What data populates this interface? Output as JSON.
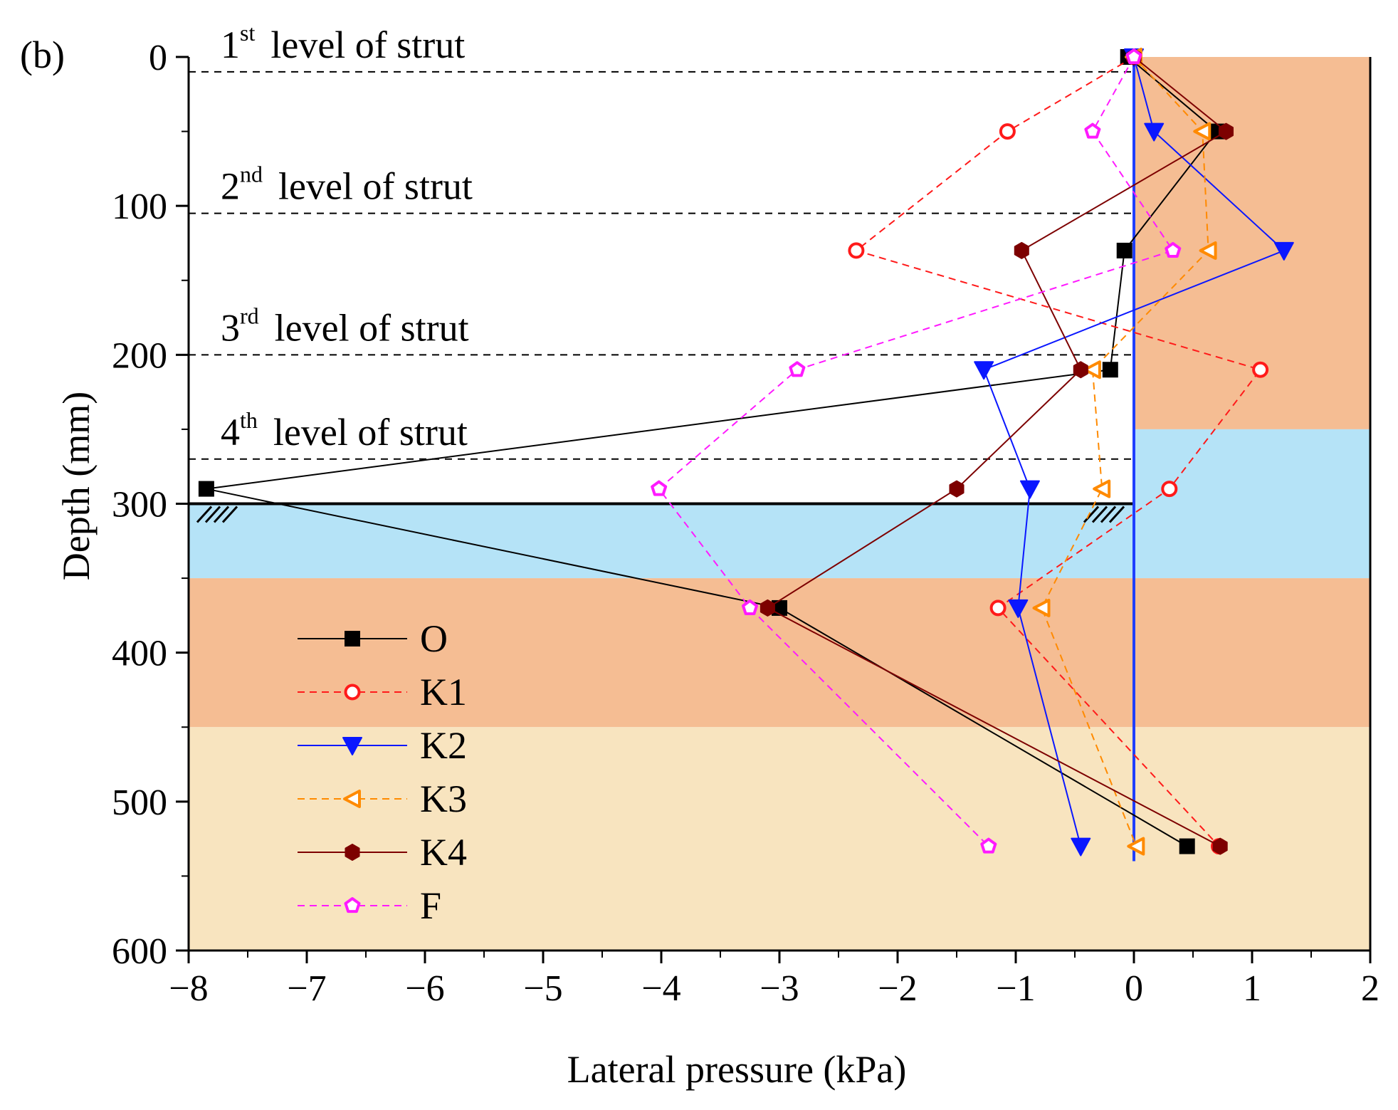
{
  "chart_data": {
    "type": "line",
    "panel_label": "(b)",
    "xlabel": "Lateral pressure (kPa)",
    "ylabel": "Depth (mm)",
    "xlim": [
      -8,
      2
    ],
    "ylim": [
      600,
      0
    ],
    "y_inverted": true,
    "xticks": [
      -8,
      -7,
      -6,
      -5,
      -4,
      -3,
      -2,
      -1,
      0,
      1,
      2
    ],
    "xtick_labels": [
      "−8",
      "−7",
      "−6",
      "−5",
      "−4",
      "−3",
      "−2",
      "−1",
      "0",
      "1",
      "2"
    ],
    "yticks": [
      0,
      100,
      200,
      300,
      400,
      500,
      600
    ],
    "ytick_labels": [
      "0",
      "100",
      "200",
      "300",
      "400",
      "500",
      "600"
    ],
    "grid": false,
    "legend_position": "lower-left",
    "soil_layers": [
      {
        "x_from": 0,
        "x_to": 2,
        "depth_from": 0,
        "depth_to": 250,
        "color": "#f5bd93"
      },
      {
        "x_from": 0,
        "x_to": 2,
        "depth_from": 250,
        "depth_to": 300,
        "color": "#b5e3f7"
      },
      {
        "x_from": -8,
        "x_to": 2,
        "depth_from": 300,
        "depth_to": 350,
        "color": "#b5e3f7"
      },
      {
        "x_from": -8,
        "x_to": 2,
        "depth_from": 350,
        "depth_to": 450,
        "color": "#f5bd93"
      },
      {
        "x_from": -8,
        "x_to": 2,
        "depth_from": 450,
        "depth_to": 600,
        "color": "#f8e4bf"
      }
    ],
    "strut_levels": [
      {
        "depth": 10,
        "ordinal": "1",
        "suffix": "st",
        "text": "level of strut"
      },
      {
        "depth": 105,
        "ordinal": "2",
        "suffix": "nd",
        "text": "level of strut"
      },
      {
        "depth": 200,
        "ordinal": "3",
        "suffix": "rd",
        "text": "level of strut"
      },
      {
        "depth": 270,
        "ordinal": "4",
        "suffix": "th",
        "text": "level of strut"
      }
    ],
    "excavation_base": {
      "depth": 300,
      "x_from": -8,
      "x_to": 0
    },
    "wall": {
      "x": 0,
      "depth_from": 0,
      "depth_to": 540,
      "color": "#1f3fff"
    },
    "series": [
      {
        "name": "O",
        "color": "#000000",
        "dash": "solid",
        "marker": "square",
        "filled": true,
        "x": [
          -0.05,
          0.7,
          -0.08,
          -0.2,
          -7.85,
          -3.0,
          0.45
        ],
        "y": [
          0,
          50,
          130,
          210,
          290,
          370,
          530
        ]
      },
      {
        "name": "K1",
        "color": "#ff1a1a",
        "dash": "dashed",
        "marker": "circle",
        "filled": false,
        "x": [
          0.0,
          -1.07,
          -2.35,
          1.07,
          0.3,
          -1.15,
          0.72
        ],
        "y": [
          0,
          50,
          130,
          210,
          290,
          370,
          530
        ]
      },
      {
        "name": "K2",
        "color": "#0a17ff",
        "dash": "solid",
        "marker": "triangle-down",
        "filled": true,
        "x": [
          0.0,
          0.17,
          1.27,
          -1.27,
          -0.88,
          -0.98,
          -0.45
        ],
        "y": [
          0,
          50,
          130,
          210,
          290,
          370,
          530
        ]
      },
      {
        "name": "K3",
        "color": "#ff8a00",
        "dash": "dashed",
        "marker": "triangle-left",
        "filled": false,
        "x": [
          0.0,
          0.58,
          0.63,
          -0.35,
          -0.27,
          -0.78,
          0.02
        ],
        "y": [
          0,
          50,
          130,
          210,
          290,
          370,
          530
        ]
      },
      {
        "name": "K4",
        "color": "#7d0000",
        "dash": "solid",
        "marker": "hexagon",
        "filled": true,
        "x": [
          0.0,
          0.78,
          -0.95,
          -0.45,
          -1.5,
          -3.1,
          0.73
        ],
        "y": [
          0,
          50,
          130,
          210,
          290,
          370,
          530
        ]
      },
      {
        "name": "F",
        "color": "#ff1aff",
        "dash": "dashed",
        "marker": "pentagon",
        "filled": false,
        "x": [
          0.0,
          -0.35,
          0.33,
          -2.85,
          -4.02,
          -3.25,
          -1.23
        ],
        "y": [
          0,
          50,
          130,
          210,
          290,
          370,
          530
        ]
      }
    ]
  }
}
